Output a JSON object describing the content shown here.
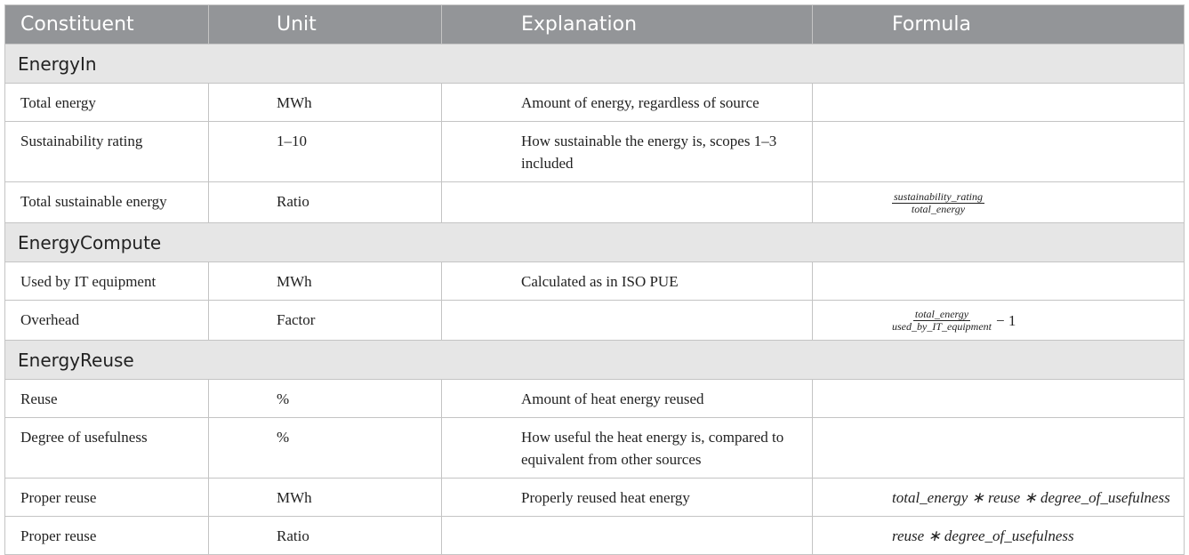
{
  "table": {
    "headers": [
      "Constituent",
      "Unit",
      "Explanation",
      "Formula"
    ],
    "sections": [
      {
        "title": "EnergyIn",
        "rows": [
          {
            "constituent": "Total energy",
            "unit": "MWh",
            "explanation": "Amount of energy, regardless of source"
          },
          {
            "constituent": "Sustainability rating",
            "unit": "1–10",
            "explanation": "How sustainable the energy is, scopes 1–3 included"
          },
          {
            "constituent": "Total sustainable energy",
            "unit": "Ratio",
            "formula": {
              "numerator": "sustainability_rating",
              "denominator": "total_energy"
            }
          }
        ]
      },
      {
        "title": "EnergyCompute",
        "rows": [
          {
            "constituent": "Used by IT equipment",
            "unit": "MWh",
            "explanation": "Calculated as in ISO PUE"
          },
          {
            "constituent": "Overhead",
            "unit": "Factor",
            "formula": {
              "numerator": "total_energy",
              "denominator": "used_by_IT_equipment",
              "suffix": "− 1"
            }
          }
        ]
      },
      {
        "title": "EnergyReuse",
        "rows": [
          {
            "constituent": "Reuse",
            "unit": "%",
            "explanation": "Amount of heat energy reused"
          },
          {
            "constituent": "Degree of usefulness",
            "unit": "%",
            "explanation": "How useful the heat energy is, compared to equivalent from other sources"
          },
          {
            "constituent": "Proper reuse",
            "unit": "MWh",
            "explanation": "Properly reused heat energy",
            "formula": {
              "text": "total_energy ∗ reuse ∗ degree_of_usefulness"
            }
          },
          {
            "constituent": "Proper reuse",
            "unit": "Ratio",
            "formula": {
              "text": "reuse ∗ degree_of_usefulness"
            }
          }
        ]
      }
    ]
  }
}
